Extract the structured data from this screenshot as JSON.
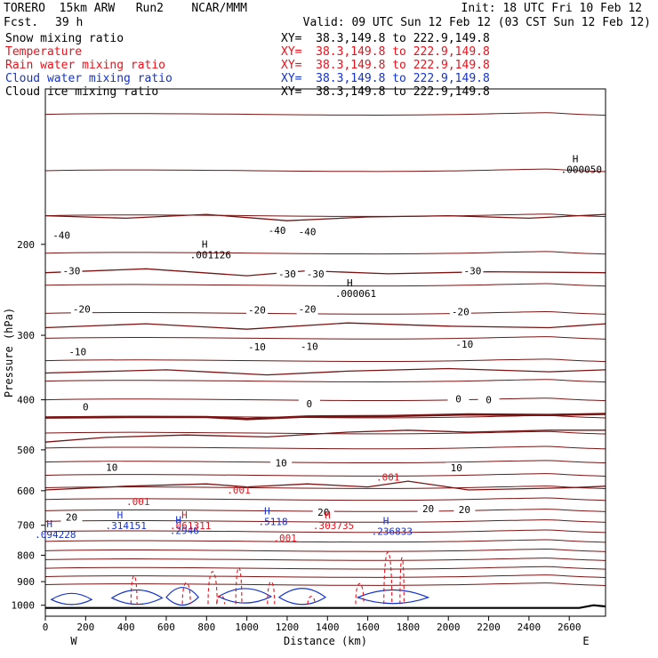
{
  "header": {
    "model_line": "TORERO  15km ARW   Run2    NCAR/MMM",
    "init": "Init: 18 UTC Fri 10 Feb 12",
    "fcst_label": "Fcst.",
    "fcst_value": "39 h",
    "valid": "Valid: 09 UTC Sun 12 Feb 12 (03 CST Sun 12 Feb 12)",
    "fields": [
      {
        "name": "Snow mixing ratio",
        "xy": "XY=  38.3,149.8 to 222.9,149.8",
        "color": "#000000"
      },
      {
        "name": "Temperature",
        "xy": "XY=  38.3,149.8 to 222.9,149.8",
        "color": "#e8121b"
      },
      {
        "name": "Rain water mixing ratio",
        "xy": "XY=  38.3,149.8 to 222.9,149.8",
        "color": "#e8121b"
      },
      {
        "name": "Cloud water mixing ratio",
        "xy": "XY=  38.3,149.8 to 222.9,149.8",
        "color": "#1433cc"
      },
      {
        "name": "Cloud ice mixing ratio",
        "xy": "XY=  38.3,149.8 to 222.9,149.8",
        "color": "#000000"
      }
    ]
  },
  "chart_data": {
    "type": "line",
    "xlabel": "Distance (km)",
    "ylabel": "Pressure (hPa)",
    "xlim": [
      0,
      2780
    ],
    "ylim": [
      1050,
      100
    ],
    "y_log": true,
    "x_ticks": [
      0,
      200,
      400,
      600,
      800,
      1000,
      1200,
      1400,
      1600,
      1800,
      2000,
      2200,
      2400,
      2600
    ],
    "y_ticks": [
      200,
      300,
      400,
      500,
      600,
      700,
      800,
      900,
      1000
    ],
    "x_end_labels": [
      "W",
      "E"
    ],
    "grid": false,
    "colors": {
      "temperature": "#7a1212",
      "rain": "#e8121b",
      "cloud_water": "#1433cc",
      "terrain": "#000000"
    },
    "temperature_isotherms": [
      {
        "label": "-40",
        "points": [
          [
            0,
            176
          ],
          [
            400,
            178
          ],
          [
            800,
            175
          ],
          [
            1200,
            180
          ],
          [
            1600,
            177
          ],
          [
            2000,
            176
          ],
          [
            2400,
            178
          ],
          [
            2780,
            175
          ]
        ]
      },
      {
        "label": "-30",
        "points": [
          [
            0,
            227
          ],
          [
            500,
            223
          ],
          [
            1000,
            230
          ],
          [
            1300,
            225
          ],
          [
            1700,
            228
          ],
          [
            2200,
            226
          ],
          [
            2780,
            227
          ]
        ]
      },
      {
        "label": "-20",
        "points": [
          [
            0,
            290
          ],
          [
            500,
            285
          ],
          [
            1000,
            292
          ],
          [
            1500,
            284
          ],
          [
            2000,
            288
          ],
          [
            2500,
            290
          ],
          [
            2780,
            285
          ]
        ]
      },
      {
        "label": "-10",
        "points": [
          [
            0,
            355
          ],
          [
            600,
            350
          ],
          [
            1100,
            358
          ],
          [
            1500,
            352
          ],
          [
            2000,
            348
          ],
          [
            2500,
            353
          ],
          [
            2780,
            350
          ]
        ]
      },
      {
        "label": "0",
        "points": [
          [
            0,
            433
          ],
          [
            400,
            432
          ],
          [
            800,
            432
          ],
          [
            1000,
            436
          ],
          [
            1300,
            431
          ],
          [
            1700,
            430
          ],
          [
            2100,
            427
          ],
          [
            2500,
            428
          ],
          [
            2780,
            426
          ]
        ]
      },
      {
        "label": "10",
        "points": [
          [
            0,
            483
          ],
          [
            300,
            473
          ],
          [
            700,
            468
          ],
          [
            1100,
            472
          ],
          [
            1500,
            462
          ],
          [
            1800,
            458
          ],
          [
            2100,
            462
          ],
          [
            2500,
            458
          ],
          [
            2780,
            458
          ]
        ]
      },
      {
        "label": "20",
        "points": [
          [
            0,
            598
          ],
          [
            400,
            588
          ],
          [
            800,
            582
          ],
          [
            1000,
            590
          ],
          [
            1300,
            582
          ],
          [
            1600,
            590
          ],
          [
            1800,
            575
          ],
          [
            2100,
            598
          ],
          [
            2600,
            592
          ],
          [
            2780,
            588
          ]
        ]
      }
    ],
    "temperature_labels": [
      {
        "text": "-40",
        "x": 80,
        "p": 192
      },
      {
        "text": "-40",
        "x": 1150,
        "p": 188
      },
      {
        "text": "-40",
        "x": 1300,
        "p": 189
      },
      {
        "text": "-30",
        "x": 130,
        "p": 225
      },
      {
        "text": "-30",
        "x": 1200,
        "p": 228
      },
      {
        "text": "-30",
        "x": 1340,
        "p": 228
      },
      {
        "text": "-30",
        "x": 2120,
        "p": 225
      },
      {
        "text": "-20",
        "x": 180,
        "p": 267
      },
      {
        "text": "-20",
        "x": 1050,
        "p": 268
      },
      {
        "text": "-20",
        "x": 1300,
        "p": 267
      },
      {
        "text": "-20",
        "x": 2060,
        "p": 270
      },
      {
        "text": "-10",
        "x": 160,
        "p": 323
      },
      {
        "text": "-10",
        "x": 1050,
        "p": 316
      },
      {
        "text": "-10",
        "x": 1310,
        "p": 315
      },
      {
        "text": "-10",
        "x": 2080,
        "p": 312
      },
      {
        "text": "0",
        "x": 200,
        "p": 413
      },
      {
        "text": "0",
        "x": 1310,
        "p": 407
      },
      {
        "text": "0",
        "x": 2050,
        "p": 398
      },
      {
        "text": "0",
        "x": 2200,
        "p": 400
      },
      {
        "text": "10",
        "x": 330,
        "p": 540
      },
      {
        "text": "10",
        "x": 1170,
        "p": 530
      },
      {
        "text": "10",
        "x": 2040,
        "p": 542
      },
      {
        "text": "20",
        "x": 130,
        "p": 675
      },
      {
        "text": "20",
        "x": 1380,
        "p": 660
      },
      {
        "text": "20",
        "x": 1900,
        "p": 650
      },
      {
        "text": "20",
        "x": 2080,
        "p": 653
      }
    ],
    "rain_water_labels": [
      {
        "text": ".001",
        "x": 460,
        "p": 630
      },
      {
        "text": ".001",
        "x": 960,
        "p": 598
      },
      {
        "text": ".001",
        "x": 1700,
        "p": 565
      },
      {
        "text": ".001",
        "x": 1190,
        "p": 740
      }
    ],
    "max_labels": [
      {
        "text": ".001126",
        "x": 820,
        "p": 206,
        "color": "#000000"
      },
      {
        "text": ".000061",
        "x": 1540,
        "p": 245,
        "color": "#000000"
      },
      {
        "text": ".000050",
        "x": 2660,
        "p": 141,
        "color": "#000000"
      },
      {
        "text": ".061311",
        "x": 720,
        "p": 690,
        "color": "#e8121b"
      },
      {
        "text": ".303735",
        "x": 1430,
        "p": 690,
        "color": "#e8121b"
      },
      {
        "text": ".314151",
        "x": 400,
        "p": 690,
        "color": "#1433cc"
      },
      {
        "text": ".2946",
        "x": 690,
        "p": 705,
        "color": "#1433cc"
      },
      {
        "text": ".5118",
        "x": 1130,
        "p": 678,
        "color": "#1433cc"
      },
      {
        "text": ".236833",
        "x": 1720,
        "p": 707,
        "color": "#1433cc"
      },
      {
        "text": ".094228",
        "x": 50,
        "p": 718,
        "color": "#1433cc"
      }
    ]
  }
}
